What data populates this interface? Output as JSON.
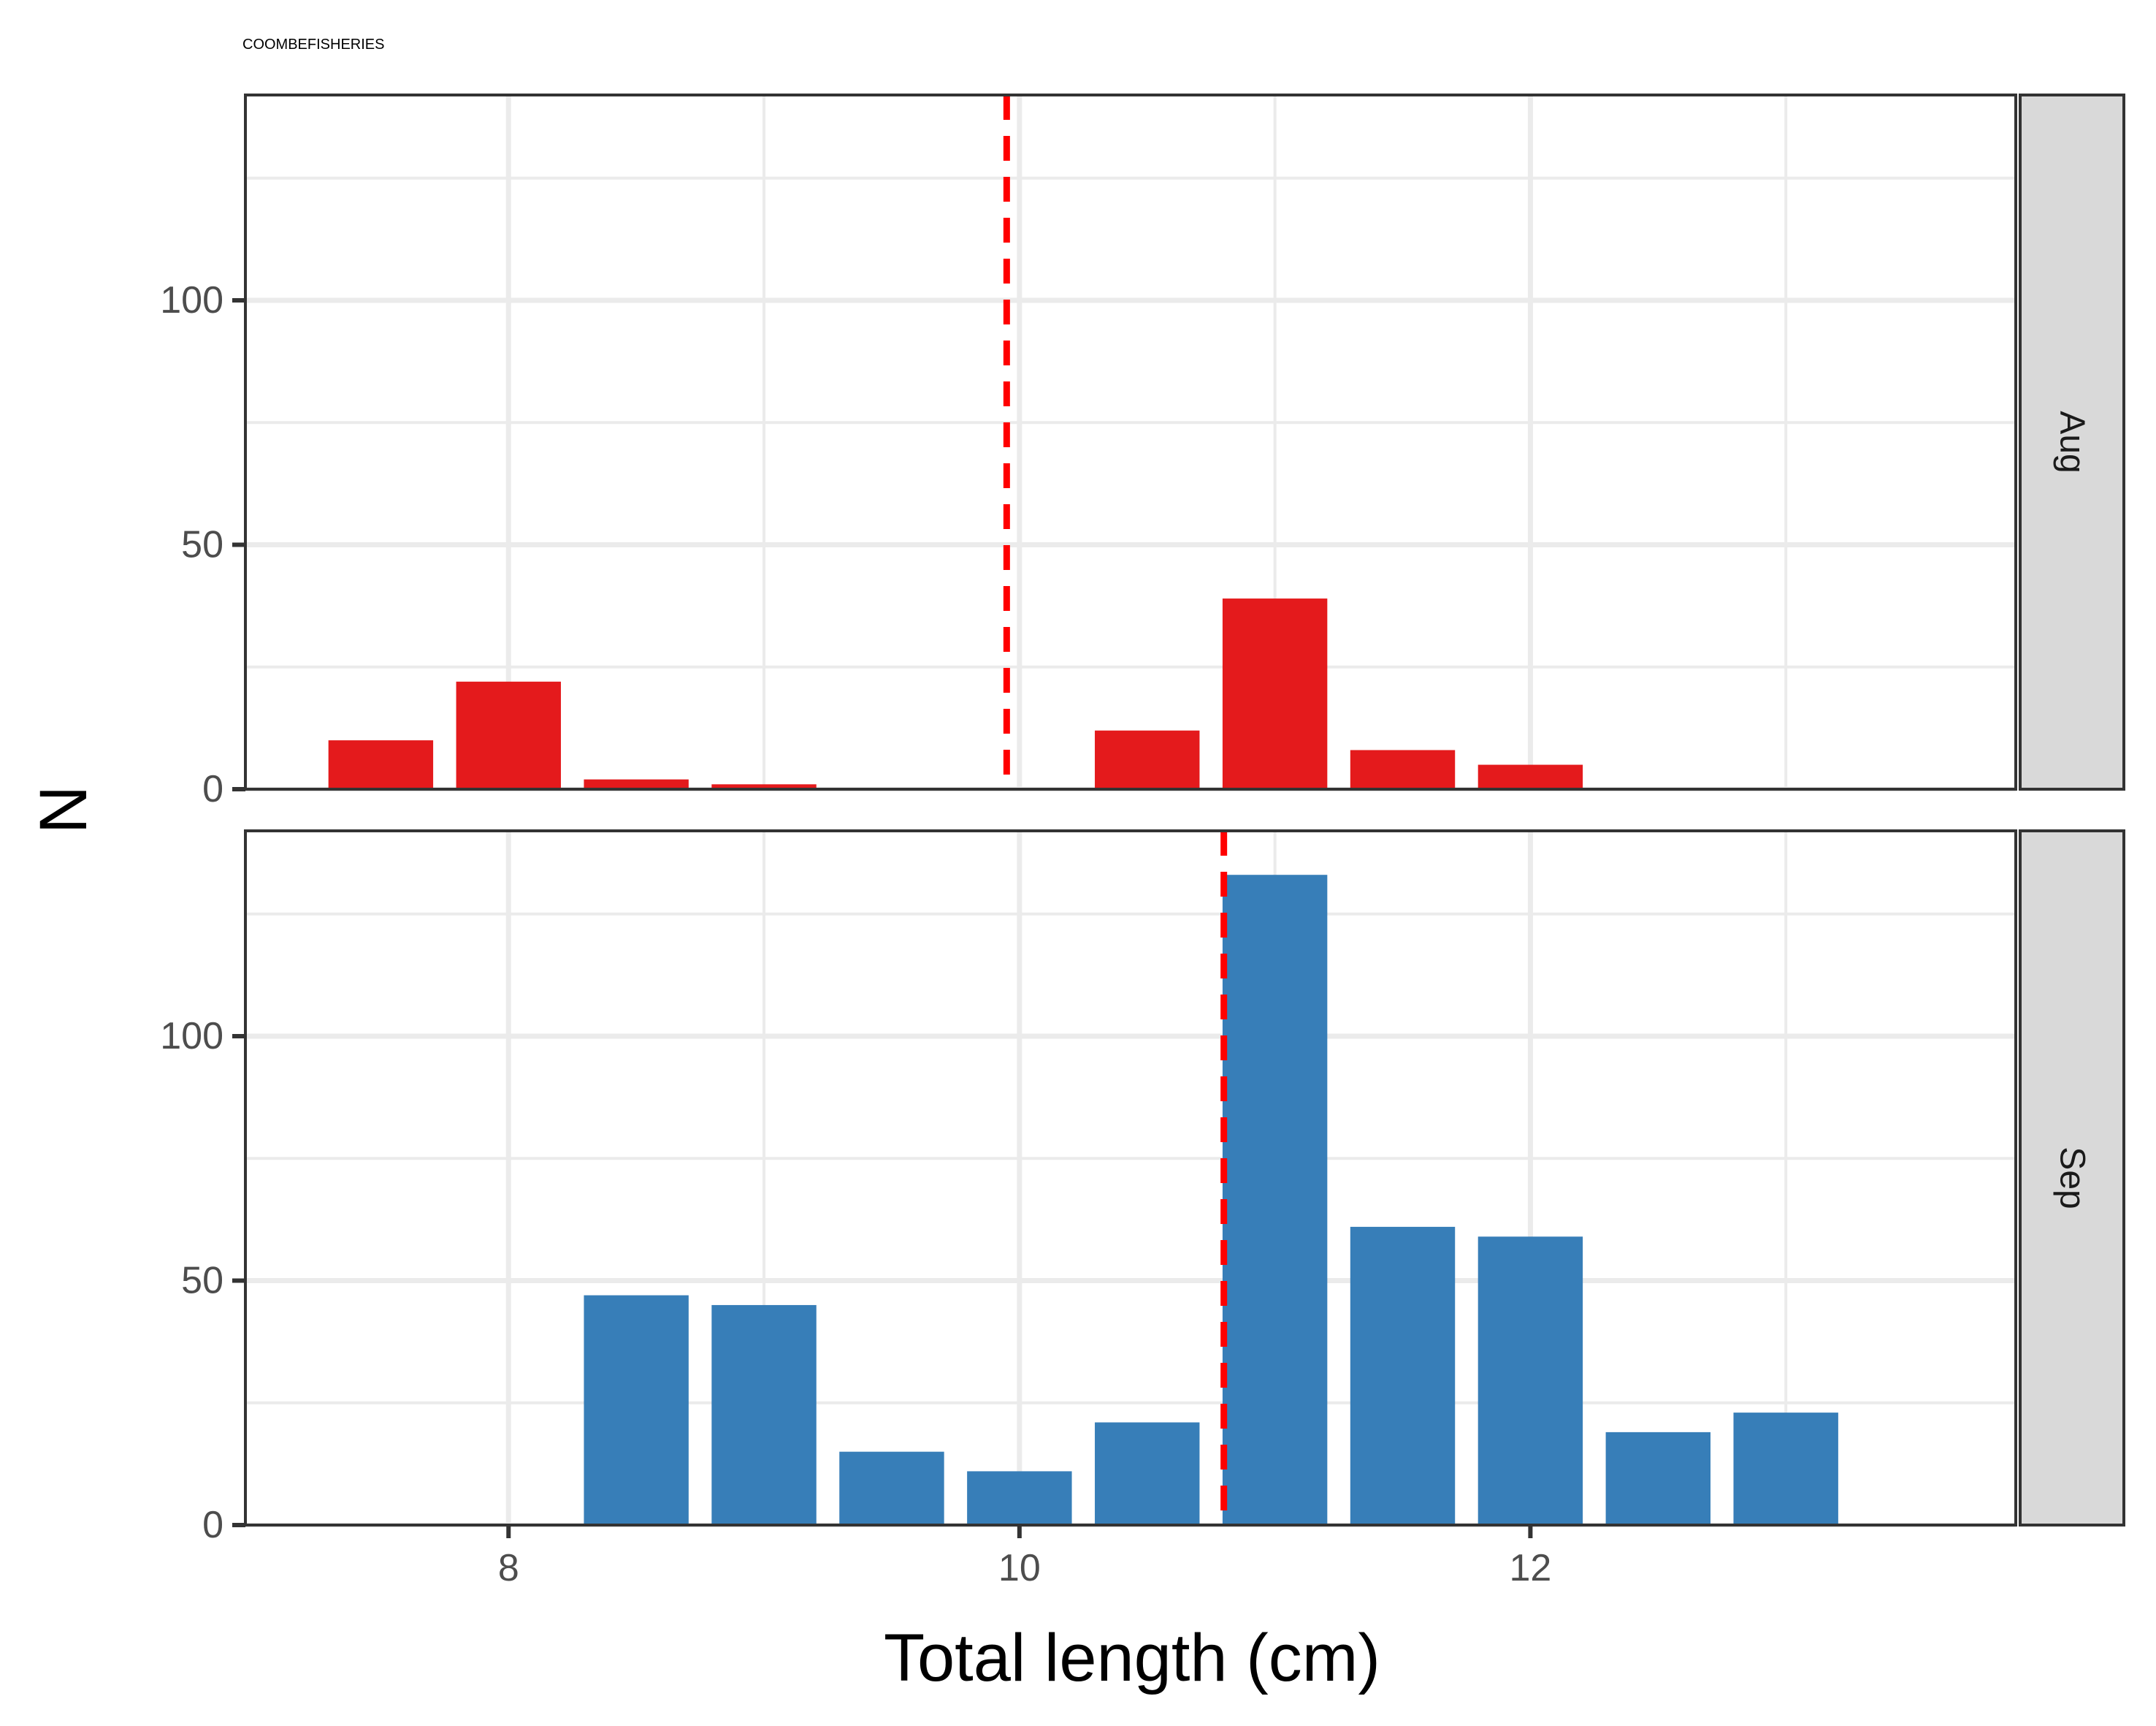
{
  "caption": "COOMBEFISHERIES",
  "chart_data": {
    "type": "bar",
    "xlabel": "Total length (cm)",
    "ylabel": "N",
    "xlim": [
      6.97,
      13.9
    ],
    "ylim": [
      0,
      142
    ],
    "x_ticks": [
      8,
      10,
      12
    ],
    "x_minor": [
      9,
      11,
      13
    ],
    "y_ticks": [
      0,
      50,
      100
    ],
    "y_minor": [
      25,
      75,
      125
    ],
    "bin_width": 0.5,
    "grid": true,
    "facets": [
      {
        "label": "Aug",
        "color": "#E41A1C",
        "mean_line": 9.95,
        "bars": [
          {
            "x": 7.5,
            "value": 10
          },
          {
            "x": 8.0,
            "value": 22
          },
          {
            "x": 8.5,
            "value": 2
          },
          {
            "x": 9.0,
            "value": 1
          },
          {
            "x": 10.5,
            "value": 12
          },
          {
            "x": 11.0,
            "value": 39
          },
          {
            "x": 11.5,
            "value": 8
          },
          {
            "x": 12.0,
            "value": 5
          }
        ]
      },
      {
        "label": "Sep",
        "color": "#377EB8",
        "mean_line": 10.8,
        "bars": [
          {
            "x": 8.5,
            "value": 47
          },
          {
            "x": 9.0,
            "value": 45
          },
          {
            "x": 9.5,
            "value": 15
          },
          {
            "x": 10.0,
            "value": 11
          },
          {
            "x": 10.5,
            "value": 21
          },
          {
            "x": 11.0,
            "value": 133
          },
          {
            "x": 11.5,
            "value": 61
          },
          {
            "x": 12.0,
            "value": 59
          },
          {
            "x": 12.5,
            "value": 19
          },
          {
            "x": 13.0,
            "value": 23
          }
        ]
      }
    ]
  }
}
